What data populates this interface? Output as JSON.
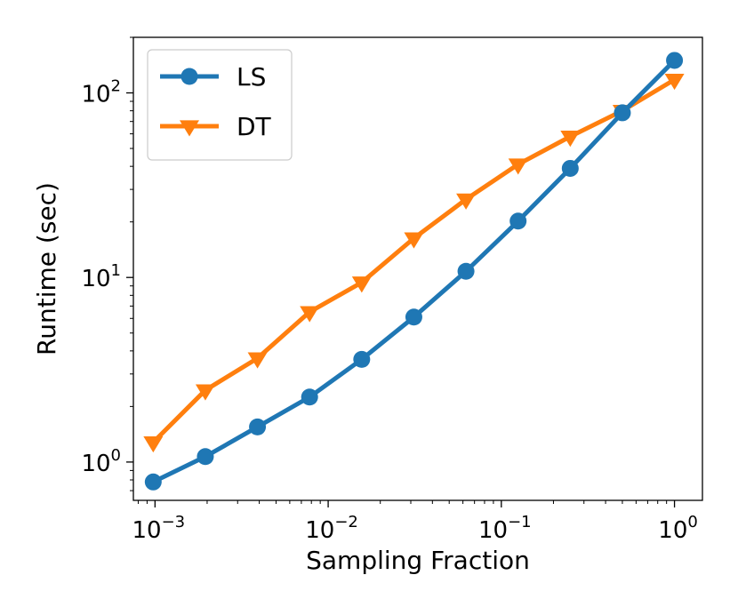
{
  "chart_data": {
    "type": "line",
    "xscale": "log",
    "yscale": "log",
    "xlabel": "Sampling Fraction",
    "ylabel": "Runtime (sec)",
    "xlim": [
      0.00075,
      1.45
    ],
    "ylim": [
      0.62,
      200
    ],
    "x": [
      0.0009765625,
      0.001953125,
      0.00390625,
      0.0078125,
      0.015625,
      0.03125,
      0.0625,
      0.125,
      0.25,
      0.5,
      1.0
    ],
    "series": [
      {
        "name": "LS",
        "color": "#1f77b4",
        "marker": "circle",
        "values": [
          0.78,
          1.07,
          1.55,
          2.25,
          3.6,
          6.1,
          10.8,
          20.2,
          39.0,
          78.0,
          150.0
        ]
      },
      {
        "name": "DT",
        "color": "#ff7f0e",
        "marker": "triangle-down",
        "values": [
          1.28,
          2.45,
          3.65,
          6.5,
          9.4,
          16.3,
          26.5,
          41.0,
          58.0,
          80.0,
          118.0
        ]
      }
    ],
    "xticks": [
      {
        "value": 0.001,
        "base": "10",
        "exp": "−3"
      },
      {
        "value": 0.01,
        "base": "10",
        "exp": "−2"
      },
      {
        "value": 0.1,
        "base": "10",
        "exp": "−1"
      },
      {
        "value": 1,
        "base": "10",
        "exp": "0"
      }
    ],
    "yticks": [
      {
        "value": 1,
        "base": "10",
        "exp": "0"
      },
      {
        "value": 10,
        "base": "10",
        "exp": "1"
      },
      {
        "value": 100,
        "base": "10",
        "exp": "2"
      }
    ],
    "legend": {
      "position": "top-left",
      "entries": [
        "LS",
        "DT"
      ]
    },
    "grid": false
  }
}
